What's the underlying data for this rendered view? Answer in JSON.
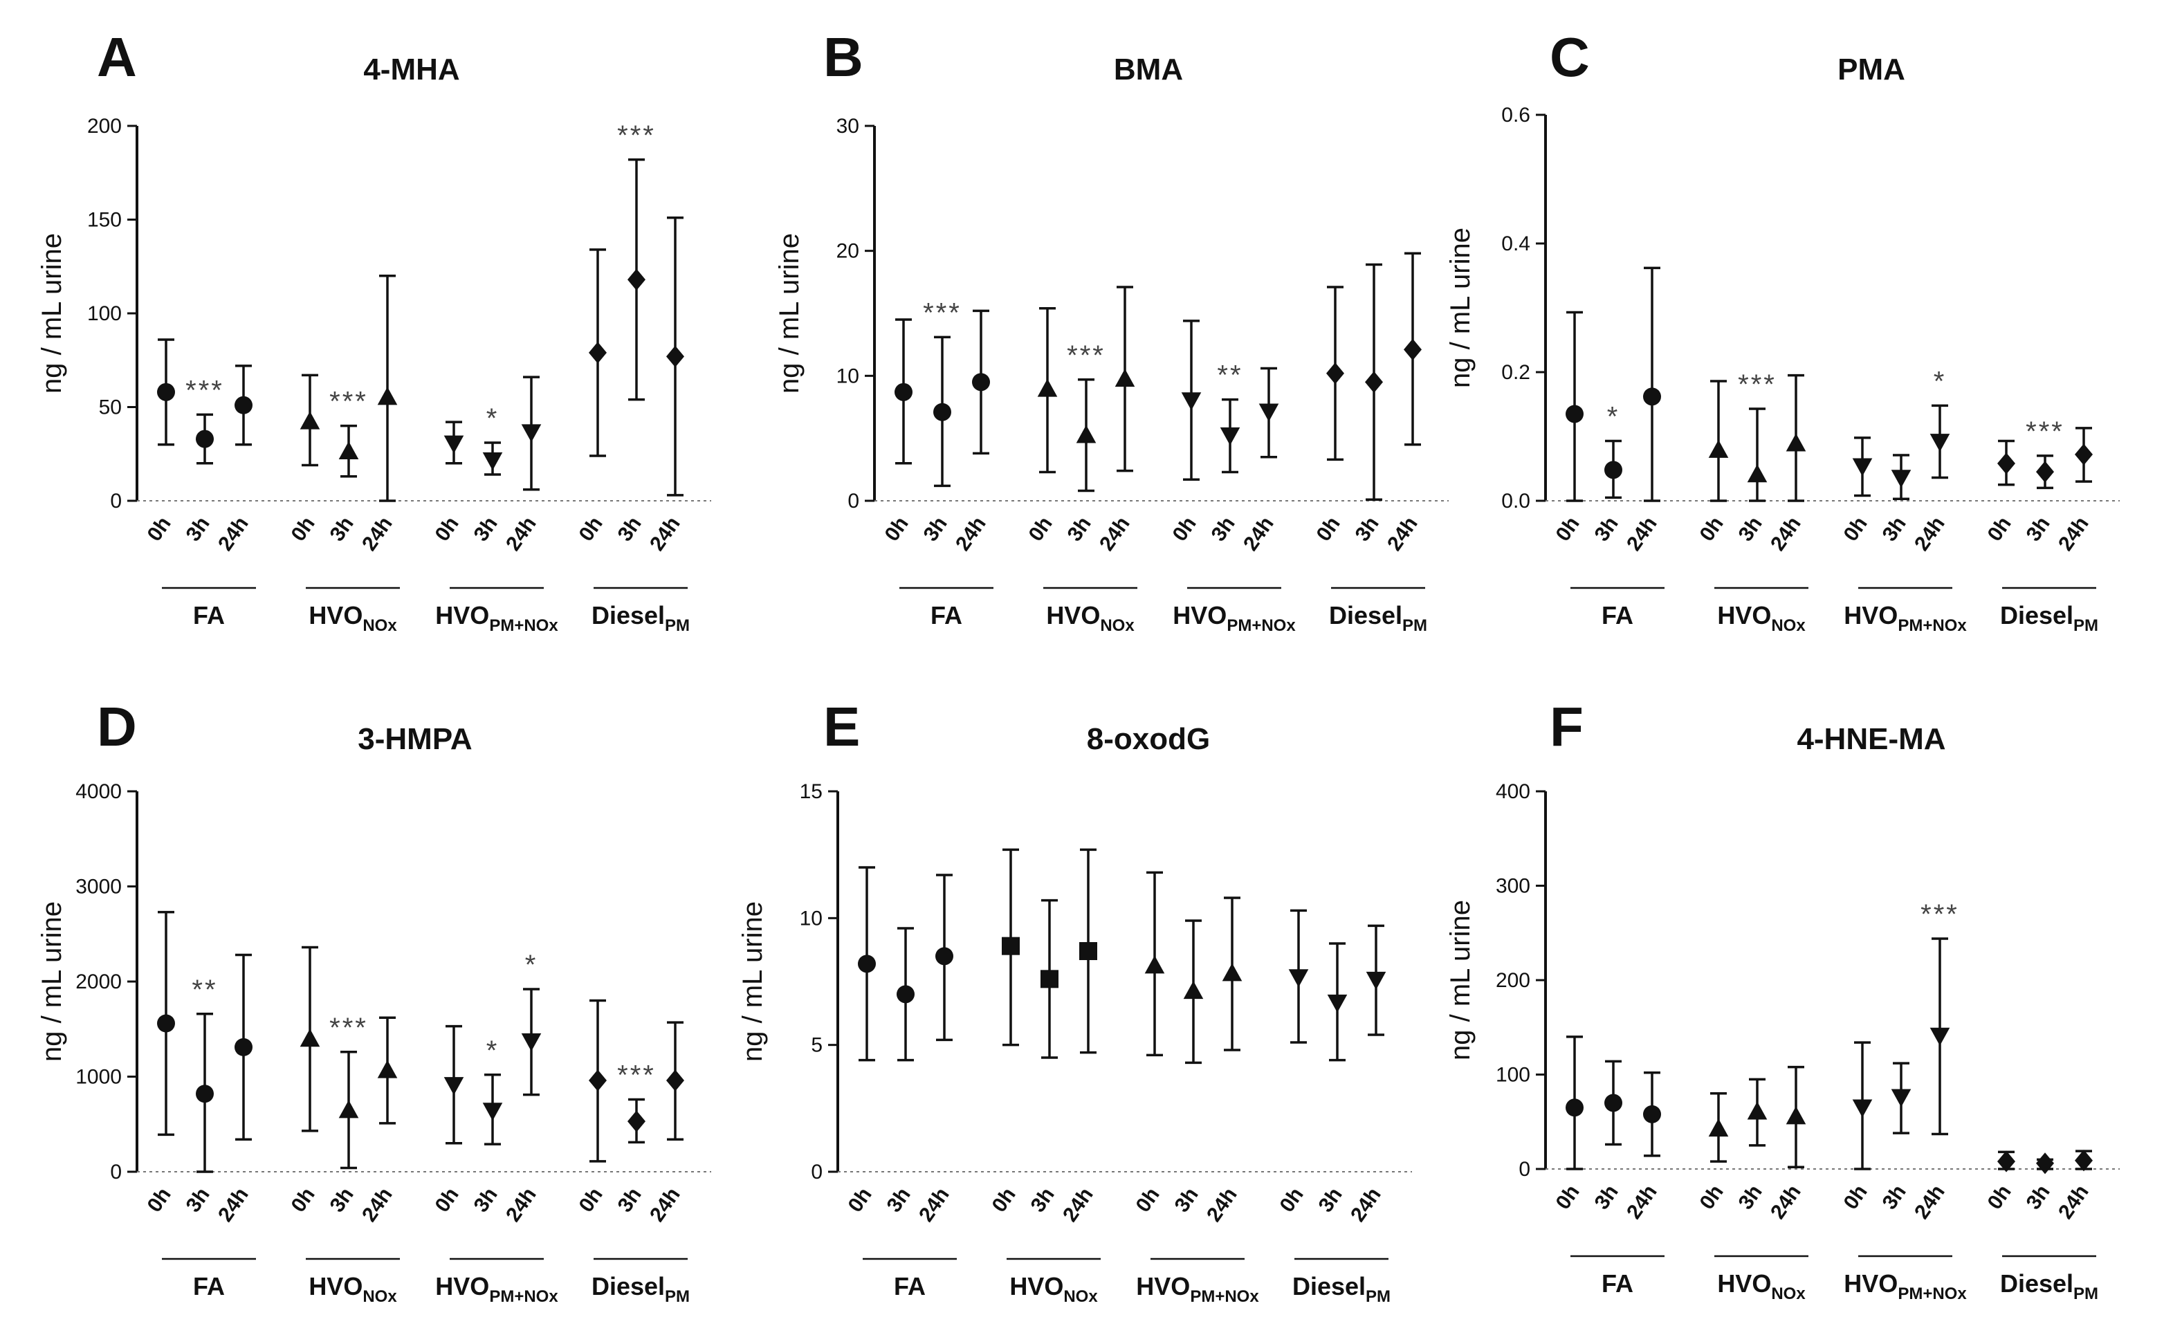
{
  "figure": {
    "description": "Six panels of urinary biomarker concentrations (mean with error bars) at 0h, 3h and 24h after four exposures"
  },
  "chart_data": [
    {
      "panel": "A",
      "title": "4-MHA",
      "type": "scatter",
      "ylabel": "ng / mL urine",
      "ylim": [
        0,
        200
      ],
      "yticks": [
        0,
        50,
        100,
        150,
        200
      ],
      "timepoints": [
        "0h",
        "3h",
        "24h"
      ],
      "groups": [
        {
          "label": "FA",
          "sub": "",
          "marker": "circle",
          "values": [
            58,
            33,
            51
          ],
          "lower": [
            30,
            20,
            30
          ],
          "upper": [
            86,
            46,
            72
          ],
          "sig": [
            {
              "point": 1,
              "text": "***"
            }
          ]
        },
        {
          "label": "HVO",
          "sub": "NOx",
          "marker": "triangle-up",
          "values": [
            42,
            26,
            55
          ],
          "lower": [
            19,
            13,
            0
          ],
          "upper": [
            67,
            40,
            120
          ],
          "sig": [
            {
              "point": 1,
              "text": "***"
            }
          ]
        },
        {
          "label": "HVO",
          "sub": "PM+NOx",
          "marker": "triangle-down",
          "values": [
            31,
            22,
            37
          ],
          "lower": [
            20,
            14,
            6
          ],
          "upper": [
            42,
            31,
            66
          ],
          "sig": [
            {
              "point": 1,
              "text": "*"
            }
          ]
        },
        {
          "label": "Diesel",
          "sub": "PM",
          "marker": "diamond",
          "values": [
            79,
            118,
            77
          ],
          "lower": [
            24,
            54,
            3
          ],
          "upper": [
            134,
            182,
            151
          ],
          "sig": [
            {
              "point": 1,
              "text": "***"
            }
          ]
        }
      ]
    },
    {
      "panel": "B",
      "title": "BMA",
      "type": "scatter",
      "ylabel": "ng / mL urine",
      "ylim": [
        0,
        30
      ],
      "yticks": [
        0,
        10,
        20,
        30
      ],
      "timepoints": [
        "0h",
        "3h",
        "24h"
      ],
      "groups": [
        {
          "label": "FA",
          "sub": "",
          "marker": "circle",
          "values": [
            8.7,
            7.1,
            9.5
          ],
          "lower": [
            3.0,
            1.2,
            3.8
          ],
          "upper": [
            14.5,
            13.1,
            15.2
          ],
          "sig": [
            {
              "point": 1,
              "text": "***"
            }
          ]
        },
        {
          "label": "HVO",
          "sub": "NOx",
          "marker": "triangle-up",
          "values": [
            8.9,
            5.2,
            9.7
          ],
          "lower": [
            2.3,
            0.8,
            2.4
          ],
          "upper": [
            15.4,
            9.7,
            17.1
          ],
          "sig": [
            {
              "point": 1,
              "text": "***"
            }
          ]
        },
        {
          "label": "HVO",
          "sub": "PM+NOx",
          "marker": "triangle-down",
          "values": [
            8.1,
            5.3,
            7.2
          ],
          "lower": [
            1.7,
            2.3,
            3.5
          ],
          "upper": [
            14.4,
            8.1,
            10.6
          ],
          "sig": [
            {
              "point": 1,
              "text": "**"
            }
          ]
        },
        {
          "label": "Diesel",
          "sub": "PM",
          "marker": "diamond",
          "values": [
            10.2,
            9.5,
            12.1
          ],
          "lower": [
            3.3,
            0.1,
            4.5
          ],
          "upper": [
            17.1,
            18.9,
            19.8
          ],
          "sig": []
        }
      ]
    },
    {
      "panel": "C",
      "title": "PMA",
      "type": "scatter",
      "ylabel": "ng / mL urine",
      "ylim": [
        0,
        0.6
      ],
      "yticks": [
        "0.0",
        "0.2",
        "0.4",
        "0.6"
      ],
      "timepoints": [
        "0h",
        "3h",
        "24h"
      ],
      "groups": [
        {
          "label": "FA",
          "sub": "",
          "marker": "circle",
          "values": [
            0.135,
            0.048,
            0.162
          ],
          "lower": [
            0.0,
            0.005,
            0.0
          ],
          "upper": [
            0.293,
            0.093,
            0.362
          ],
          "sig": [
            {
              "point": 1,
              "text": "*"
            }
          ]
        },
        {
          "label": "HVO",
          "sub": "NOx",
          "marker": "triangle-up",
          "values": [
            0.078,
            0.04,
            0.088
          ],
          "lower": [
            0.0,
            0.0,
            0.0
          ],
          "upper": [
            0.186,
            0.143,
            0.195
          ],
          "sig": [
            {
              "point": 1,
              "text": "***"
            }
          ]
        },
        {
          "label": "HVO",
          "sub": "PM+NOx",
          "marker": "triangle-down",
          "values": [
            0.055,
            0.037,
            0.093
          ],
          "lower": [
            0.008,
            0.003,
            0.036
          ],
          "upper": [
            0.098,
            0.071,
            0.148
          ],
          "sig": [
            {
              "point": 2,
              "text": "*"
            }
          ]
        },
        {
          "label": "Diesel",
          "sub": "PM",
          "marker": "diamond",
          "values": [
            0.058,
            0.045,
            0.072
          ],
          "lower": [
            0.025,
            0.02,
            0.03
          ],
          "upper": [
            0.093,
            0.07,
            0.113
          ],
          "sig": [
            {
              "point": 1,
              "text": "***"
            }
          ]
        }
      ]
    },
    {
      "panel": "D",
      "title": "3-HMPA",
      "type": "scatter",
      "ylabel": "ng / mL urine",
      "ylim": [
        0,
        4000
      ],
      "yticks": [
        0,
        1000,
        2000,
        3000,
        4000
      ],
      "timepoints": [
        "0h",
        "3h",
        "24h"
      ],
      "groups": [
        {
          "label": "FA",
          "sub": "",
          "marker": "circle",
          "values": [
            1560,
            820,
            1310
          ],
          "lower": [
            390,
            0,
            340
          ],
          "upper": [
            2730,
            1660,
            2280
          ],
          "sig": [
            {
              "point": 1,
              "text": "**"
            }
          ]
        },
        {
          "label": "HVO",
          "sub": "NOx",
          "marker": "triangle-up",
          "values": [
            1390,
            640,
            1060
          ],
          "lower": [
            430,
            40,
            510
          ],
          "upper": [
            2360,
            1260,
            1620
          ],
          "sig": [
            {
              "point": 1,
              "text": "***"
            }
          ]
        },
        {
          "label": "HVO",
          "sub": "PM+NOx",
          "marker": "triangle-down",
          "values": [
            920,
            650,
            1380
          ],
          "lower": [
            300,
            290,
            810
          ],
          "upper": [
            1530,
            1020,
            1920
          ],
          "sig": [
            {
              "point": 1,
              "text": "*"
            },
            {
              "point": 2,
              "text": "*"
            }
          ]
        },
        {
          "label": "Diesel",
          "sub": "PM",
          "marker": "diamond",
          "values": [
            960,
            530,
            960
          ],
          "lower": [
            110,
            310,
            340
          ],
          "upper": [
            1800,
            760,
            1570
          ],
          "sig": [
            {
              "point": 1,
              "text": "***"
            }
          ]
        }
      ]
    },
    {
      "panel": "E",
      "title": "8-oxodG",
      "type": "scatter",
      "ylabel": "ng / mL urine",
      "ylim": [
        0,
        15
      ],
      "yticks": [
        0,
        5,
        10,
        15
      ],
      "timepoints": [
        "0h",
        "3h",
        "24h"
      ],
      "groups": [
        {
          "label": "FA",
          "sub": "",
          "marker": "circle",
          "values": [
            8.2,
            7.0,
            8.5
          ],
          "lower": [
            4.4,
            4.4,
            5.2
          ],
          "upper": [
            12.0,
            9.6,
            11.7
          ],
          "sig": []
        },
        {
          "label": "HVO",
          "sub": "NOx",
          "marker": "square",
          "values": [
            8.9,
            7.6,
            8.7
          ],
          "lower": [
            5.0,
            4.5,
            4.7
          ],
          "upper": [
            12.7,
            10.7,
            12.7
          ],
          "sig": []
        },
        {
          "label": "HVO",
          "sub": "PM+NOx",
          "marker": "triangle-up",
          "values": [
            8.1,
            7.1,
            7.8
          ],
          "lower": [
            4.6,
            4.3,
            4.8
          ],
          "upper": [
            11.8,
            9.9,
            10.8
          ],
          "sig": []
        },
        {
          "label": "Diesel",
          "sub": "PM",
          "marker": "triangle-down",
          "values": [
            7.7,
            6.7,
            7.6
          ],
          "lower": [
            5.1,
            4.4,
            5.4
          ],
          "upper": [
            10.3,
            9.0,
            9.7
          ],
          "sig": []
        }
      ]
    },
    {
      "panel": "F",
      "title": "4-HNE-MA",
      "type": "scatter",
      "ylabel": "ng / mL urine",
      "ylim": [
        0,
        400
      ],
      "yticks": [
        0,
        100,
        200,
        300,
        400
      ],
      "timepoints": [
        "0h",
        "3h",
        "24h"
      ],
      "groups": [
        {
          "label": "FA",
          "sub": "",
          "marker": "circle",
          "values": [
            65,
            70,
            58
          ],
          "lower": [
            0,
            26,
            14
          ],
          "upper": [
            140,
            114,
            102
          ],
          "sig": []
        },
        {
          "label": "HVO",
          "sub": "NOx",
          "marker": "triangle-up",
          "values": [
            42,
            60,
            55
          ],
          "lower": [
            8,
            25,
            2
          ],
          "upper": [
            80,
            95,
            108
          ],
          "sig": []
        },
        {
          "label": "HVO",
          "sub": "PM+NOx",
          "marker": "triangle-down",
          "values": [
            66,
            77,
            142
          ],
          "lower": [
            0,
            38,
            37
          ],
          "upper": [
            134,
            112,
            244
          ],
          "sig": [
            {
              "point": 2,
              "text": "***"
            }
          ]
        },
        {
          "label": "Diesel",
          "sub": "PM",
          "marker": "diamond",
          "values": [
            8,
            6,
            9
          ],
          "lower": [
            0,
            0,
            0
          ],
          "upper": [
            18,
            10,
            19
          ],
          "sig": []
        }
      ]
    }
  ]
}
